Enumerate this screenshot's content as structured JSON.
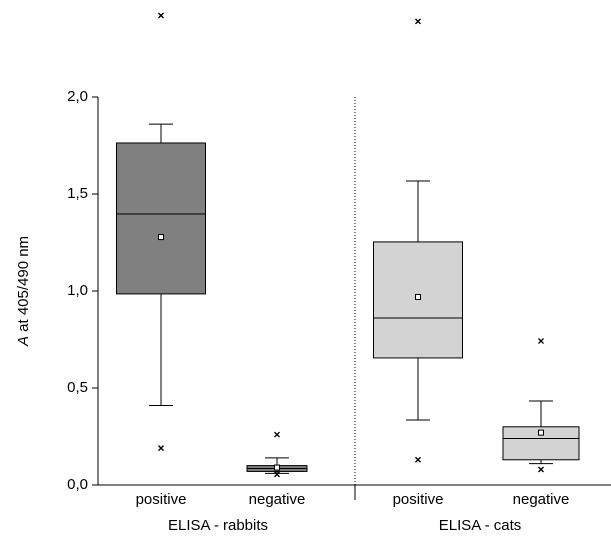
{
  "chart_data": {
    "type": "box",
    "y_label_var": "A",
    "y_label": "at 405/490 nm",
    "groups": [
      "ELISA - rabbits",
      "ELISA - cats"
    ],
    "categories": [
      "positive",
      "negative",
      "positive",
      "negative"
    ],
    "ylim": [
      0,
      2.5
    ],
    "yticks": [
      {
        "value": 0,
        "label": "0,0"
      },
      {
        "value": 0.5,
        "label": "0,5"
      },
      {
        "value": 1,
        "label": "1,0"
      },
      {
        "value": 1.5,
        "label": "1,5"
      },
      {
        "value": 2,
        "label": "2,0"
      }
    ],
    "boxes": [
      {
        "color": "#808080",
        "min": 0.41,
        "q1": 0.985,
        "median": 1.397,
        "q3": 1.763,
        "max": 1.86,
        "mean": 1.278,
        "outliers": [
          0.19,
          2.42
        ]
      },
      {
        "color": "#808080",
        "min": 0.06,
        "q1": 0.07,
        "median": 0.085,
        "q3": 0.1,
        "max": 0.14,
        "mean": 0.09,
        "outliers": [
          0.055,
          0.26
        ]
      },
      {
        "color": "#d3d3d3",
        "min": 0.335,
        "q1": 0.655,
        "median": 0.861,
        "q3": 1.253,
        "max": 1.567,
        "mean": 0.969,
        "outliers": [
          0.13,
          2.39
        ]
      },
      {
        "color": "#d3d3d3",
        "min": 0.11,
        "q1": 0.13,
        "median": 0.24,
        "q3": 0.3,
        "max": 0.433,
        "mean": 0.27,
        "outliers": [
          0.08,
          0.742
        ]
      }
    ]
  }
}
